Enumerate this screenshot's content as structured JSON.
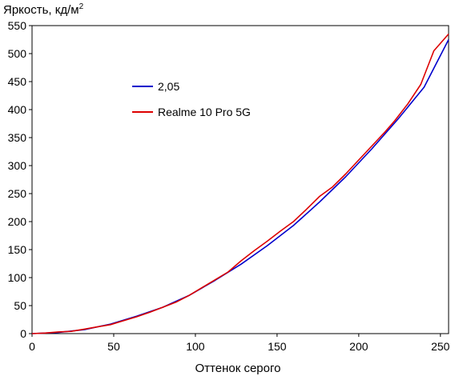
{
  "chart_data": {
    "type": "line",
    "title": "",
    "ylabel": "Яркость, кд/м",
    "ylabel_sup": "2",
    "xlabel": "Оттенок серого",
    "xlim": [
      0,
      255
    ],
    "ylim": [
      0,
      550
    ],
    "x_ticks": [
      0,
      50,
      100,
      150,
      200,
      250
    ],
    "y_ticks": [
      0,
      50,
      100,
      150,
      200,
      250,
      300,
      350,
      400,
      450,
      500,
      550
    ],
    "grid": false,
    "legend_position": "upper-left-inside",
    "series": [
      {
        "name": "2,05",
        "color": "#0000cc",
        "x": [
          0,
          16,
          32,
          48,
          64,
          80,
          96,
          112,
          128,
          144,
          160,
          176,
          192,
          208,
          224,
          240,
          255
        ],
        "y": [
          0,
          2,
          7,
          17,
          31,
          47,
          68,
          95,
          124,
          157,
          193,
          235,
          280,
          330,
          383,
          440,
          525
        ]
      },
      {
        "name": "Realme 10 Pro 5G",
        "color": "#dd0000",
        "x": [
          0,
          8,
          16,
          24,
          32,
          40,
          48,
          56,
          64,
          72,
          80,
          88,
          96,
          104,
          112,
          120,
          128,
          136,
          144,
          152,
          160,
          168,
          176,
          184,
          192,
          200,
          208,
          216,
          222,
          230,
          238,
          246,
          255
        ],
        "y": [
          0,
          1,
          3,
          4,
          8,
          12,
          16,
          23,
          30,
          38,
          47,
          56,
          68,
          82,
          96,
          110,
          130,
          148,
          165,
          183,
          200,
          222,
          245,
          262,
          285,
          310,
          335,
          360,
          380,
          410,
          445,
          505,
          535
        ]
      }
    ]
  }
}
